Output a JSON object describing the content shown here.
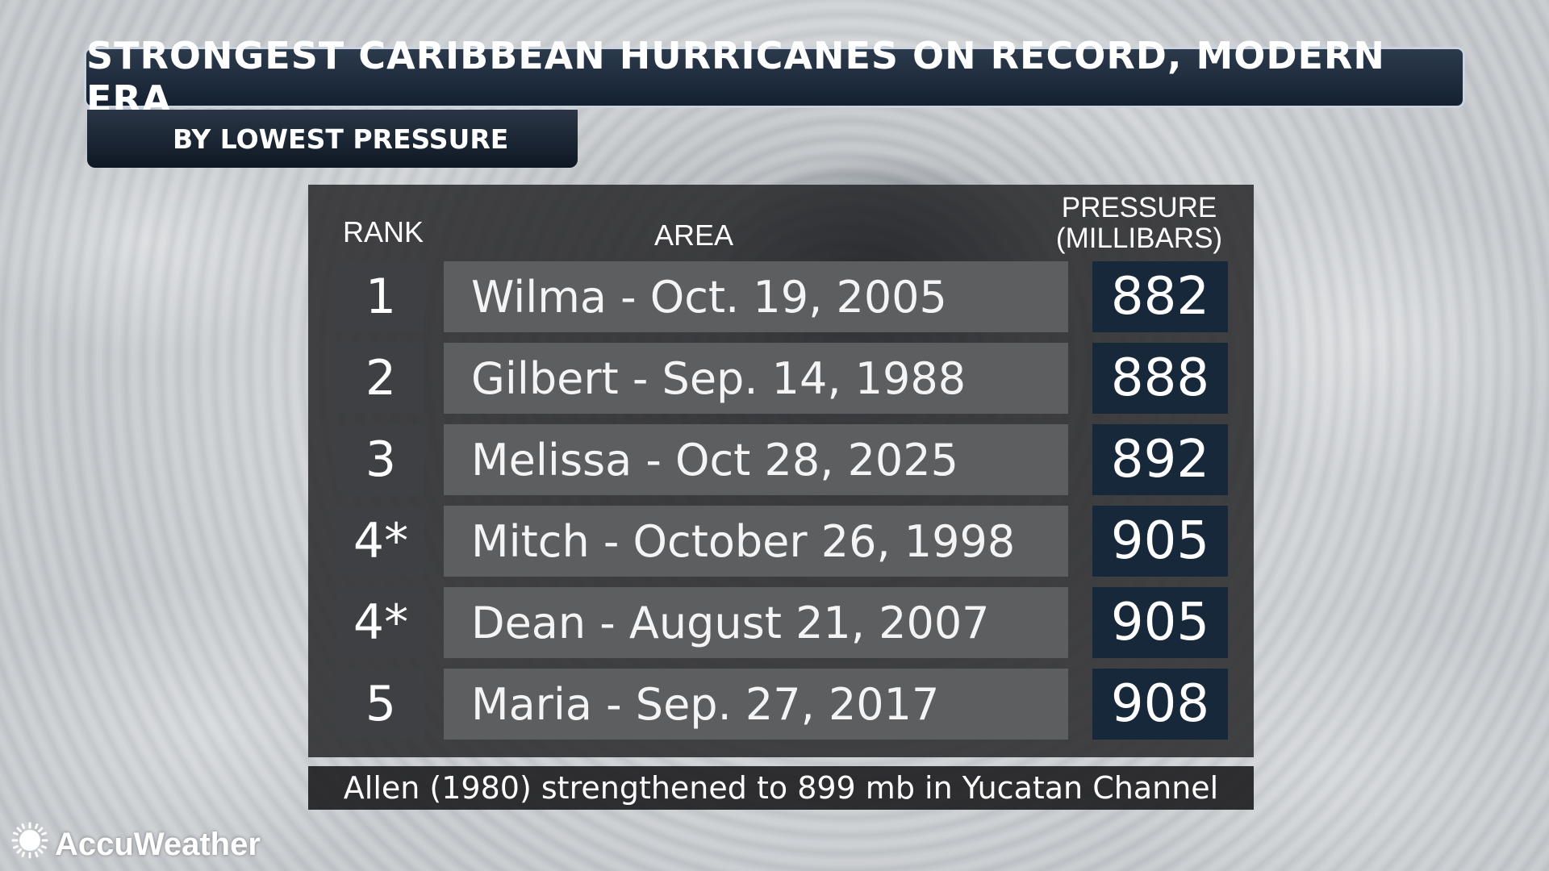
{
  "title": "STRONGEST CARIBBEAN HURRICANES ON RECORD, MODERN ERA",
  "subtitle": "BY LOWEST PRESSURE",
  "table": {
    "headers": {
      "rank": "RANK",
      "area": "AREA",
      "pressure_line1": "PRESSURE",
      "pressure_line2": "(MILLIBARS)"
    },
    "rows": [
      {
        "rank": "1",
        "area": "Wilma - Oct. 19, 2005",
        "pressure": "882"
      },
      {
        "rank": "2",
        "area": "Gilbert - Sep. 14, 1988",
        "pressure": "888"
      },
      {
        "rank": "3",
        "area": "Melissa - Oct 28, 2025",
        "pressure": "892"
      },
      {
        "rank": "4*",
        "area": "Mitch - October 26, 1998",
        "pressure": "905"
      },
      {
        "rank": "4*",
        "area": "Dean - August 21, 2007",
        "pressure": "905"
      },
      {
        "rank": "5",
        "area": "Maria - Sep. 27, 2017",
        "pressure": "908"
      }
    ]
  },
  "footnote": "Allen (1980) strengthened to 899 mb in Yucatan Channel",
  "logo": {
    "text": "AccuWeather",
    "icon": "sun-icon"
  },
  "colors": {
    "title_bar": "#1c2a3b",
    "pressure_cell": "#17283a",
    "area_cell": "#5d5e60",
    "rank_cell": "#3f4043",
    "accent": "#ffffff"
  }
}
